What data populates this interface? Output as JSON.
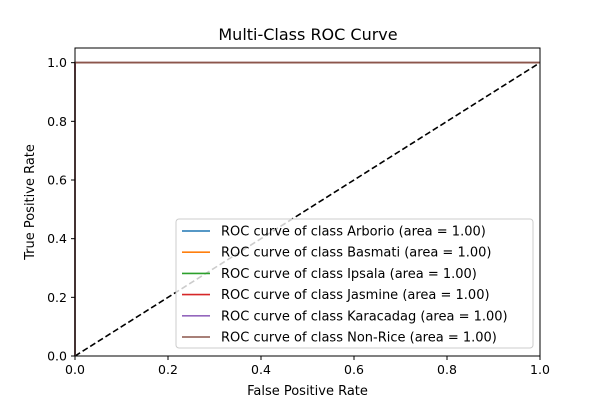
{
  "chart_data": {
    "type": "line",
    "title": "Multi-Class ROC Curve",
    "xlabel": "False Positive Rate",
    "ylabel": "True Positive Rate",
    "xlim": [
      0.0,
      1.0
    ],
    "ylim": [
      0.0,
      1.05
    ],
    "xticks": [
      "0.0",
      "0.2",
      "0.4",
      "0.6",
      "0.8",
      "1.0"
    ],
    "yticks": [
      "0.0",
      "0.2",
      "0.4",
      "0.6",
      "0.8",
      "1.0"
    ],
    "grid": false,
    "legend_position": "lower-right",
    "series": [
      {
        "name": "ROC curve of class Arborio (area = 1.00)",
        "color": "#1f77b4",
        "x": [
          0.0,
          0.0,
          1.0
        ],
        "y": [
          0.0,
          1.0,
          1.0
        ]
      },
      {
        "name": "ROC curve of class Basmati (area = 1.00)",
        "color": "#ff7f0e",
        "x": [
          0.0,
          0.0,
          1.0
        ],
        "y": [
          0.0,
          1.0,
          1.0
        ]
      },
      {
        "name": "ROC curve of class Ipsala (area = 1.00)",
        "color": "#2ca02c",
        "x": [
          0.0,
          0.0,
          1.0
        ],
        "y": [
          0.0,
          1.0,
          1.0
        ]
      },
      {
        "name": "ROC curve of class Jasmine (area = 1.00)",
        "color": "#d62728",
        "x": [
          0.0,
          0.0,
          1.0
        ],
        "y": [
          0.97,
          1.0,
          1.0
        ]
      },
      {
        "name": "ROC curve of class Karacadag (area = 1.00)",
        "color": "#9467bd",
        "x": [
          0.0,
          0.0,
          1.0
        ],
        "y": [
          0.0,
          1.0,
          1.0
        ]
      },
      {
        "name": "ROC curve of class Non-Rice (area = 1.00)",
        "color": "#8c564b",
        "x": [
          0.0,
          0.0,
          1.0
        ],
        "y": [
          0.0,
          1.0,
          1.0
        ]
      }
    ],
    "reference_line": {
      "style": "dashed",
      "color": "#000000",
      "x": [
        0.0,
        1.0
      ],
      "y": [
        0.0,
        1.0
      ]
    }
  }
}
